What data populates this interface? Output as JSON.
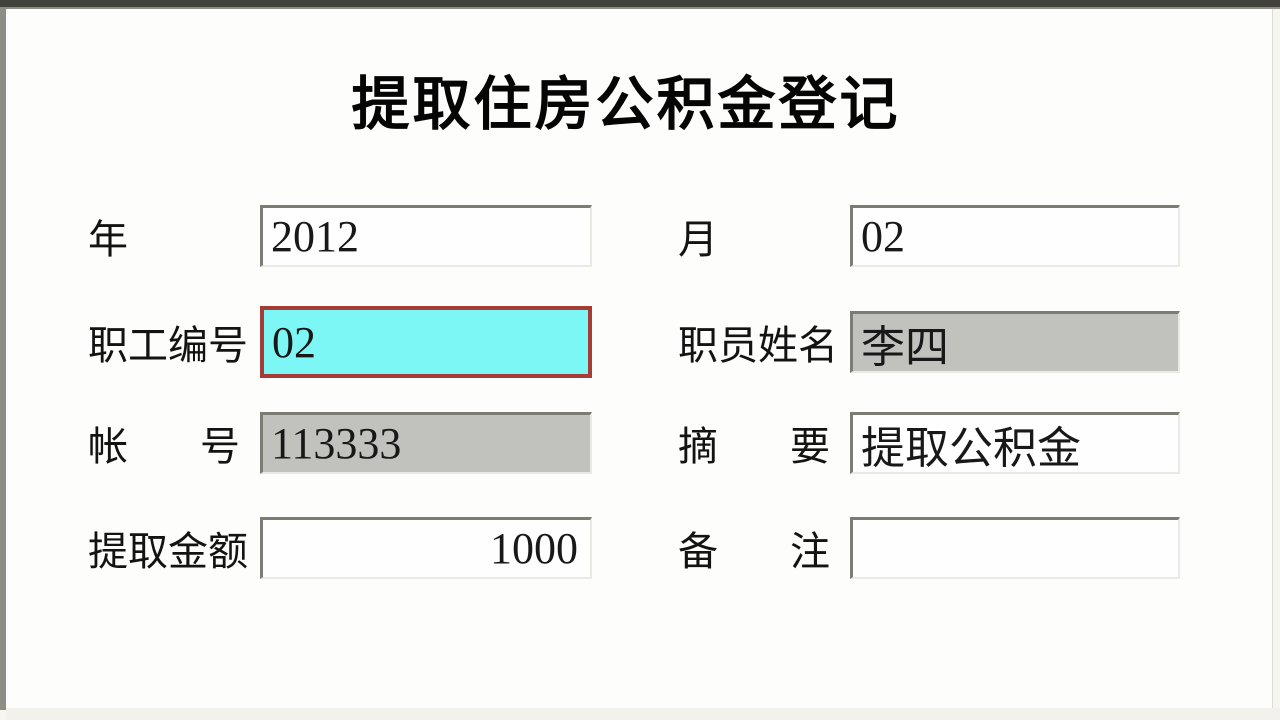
{
  "window": {
    "title": "提取住房公积金登记"
  },
  "form": {
    "fields": {
      "year": {
        "label": "年",
        "value": "2012",
        "state": "editable"
      },
      "month": {
        "label": "月",
        "value": "02",
        "state": "editable"
      },
      "employee_no": {
        "label": "职工编号",
        "value": "02",
        "state": "focused"
      },
      "employee_name": {
        "label": "职员姓名",
        "value": "李四",
        "state": "readonly"
      },
      "account_no": {
        "label": "帐号",
        "value": "113333",
        "state": "readonly"
      },
      "summary": {
        "label": "摘要",
        "value": "提取公积金",
        "state": "editable"
      },
      "amount": {
        "label": "提取金额",
        "value": "1000",
        "state": "editable",
        "align": "right"
      },
      "remark": {
        "label": "备注",
        "value": "",
        "state": "editable"
      }
    }
  },
  "colors": {
    "focused_field_background": "#7DF7F5",
    "focused_field_border": "#A63C36",
    "readonly_field_background": "#C1C1BD",
    "field_border_dark": "#7C7C74",
    "panel_background": "#FDFDFC",
    "frame_top_bar": "#42423C",
    "frame_left_bar": "#8D8D85",
    "title_color": "#050505"
  }
}
